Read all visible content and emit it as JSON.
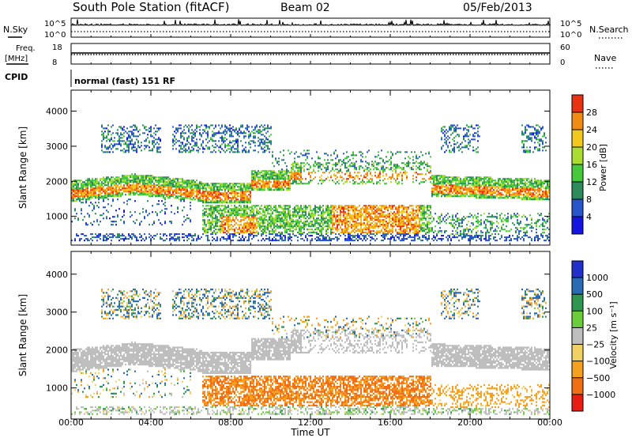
{
  "header": {
    "title": "South Pole Station (fitACF)",
    "beam": "Beam 02",
    "date": "05/Feb/2013"
  },
  "side_labels": {
    "nsky": "N.Sky",
    "nsky_ticks": [
      "10^5",
      "10^0"
    ],
    "nsearch": "N.Search",
    "nsearch_ticks": [
      "10^5",
      "10^0"
    ],
    "freq_line1": "Freq.",
    "freq_line2": "[MHz]",
    "freq_ticks": [
      "18",
      "8"
    ],
    "nave": "Nave",
    "nave_ticks": [
      "60",
      "0"
    ],
    "cpid": "CPID",
    "mode": "normal (fast) 151 RF"
  },
  "chart_data": [
    {
      "type": "heatmap",
      "name": "power",
      "ylabel": "Slant Range [km]",
      "xlabel": "Time UT",
      "x_ticks": [
        "00:00",
        "04:00",
        "08:00",
        "12:00",
        "16:00",
        "20:00",
        "00:00"
      ],
      "x_range_hours": [
        0,
        24
      ],
      "y_ticks": [
        1000,
        2000,
        3000,
        4000
      ],
      "y_range_km": [
        180,
        4600
      ],
      "colorbar_title": "Power [dB]",
      "colorbar_ticks": [
        "4",
        "8",
        "12",
        "16",
        "20",
        "24",
        "28"
      ],
      "colorbar_range": [
        0,
        32
      ],
      "colors": [
        "#1414e0",
        "#2a55c8",
        "#2d8a5a",
        "#46c83c",
        "#aadc32",
        "#f0c81e",
        "#f08c14",
        "#e83214"
      ]
    },
    {
      "type": "heatmap",
      "name": "velocity",
      "ylabel": "Slant Range [km]",
      "xlabel": "Time UT",
      "x_ticks": [
        "00:00",
        "04:00",
        "08:00",
        "12:00",
        "16:00",
        "20:00",
        "00:00"
      ],
      "x_range_hours": [
        0,
        24
      ],
      "y_ticks": [
        1000,
        2000,
        3000,
        4000
      ],
      "y_range_km": [
        180,
        4600
      ],
      "colorbar_title": "Velocity [m s⁻¹]",
      "colorbar_ticks": [
        "1000",
        "500",
        "100",
        "25",
        "−25",
        "−100",
        "−500",
        "−1000"
      ],
      "colors": [
        "#2030c8",
        "#2a6ab0",
        "#2e9650",
        "#6ccc3c",
        "#bebebe",
        "#f0d264",
        "#f5a01e",
        "#f06e14",
        "#e61e14"
      ]
    }
  ]
}
